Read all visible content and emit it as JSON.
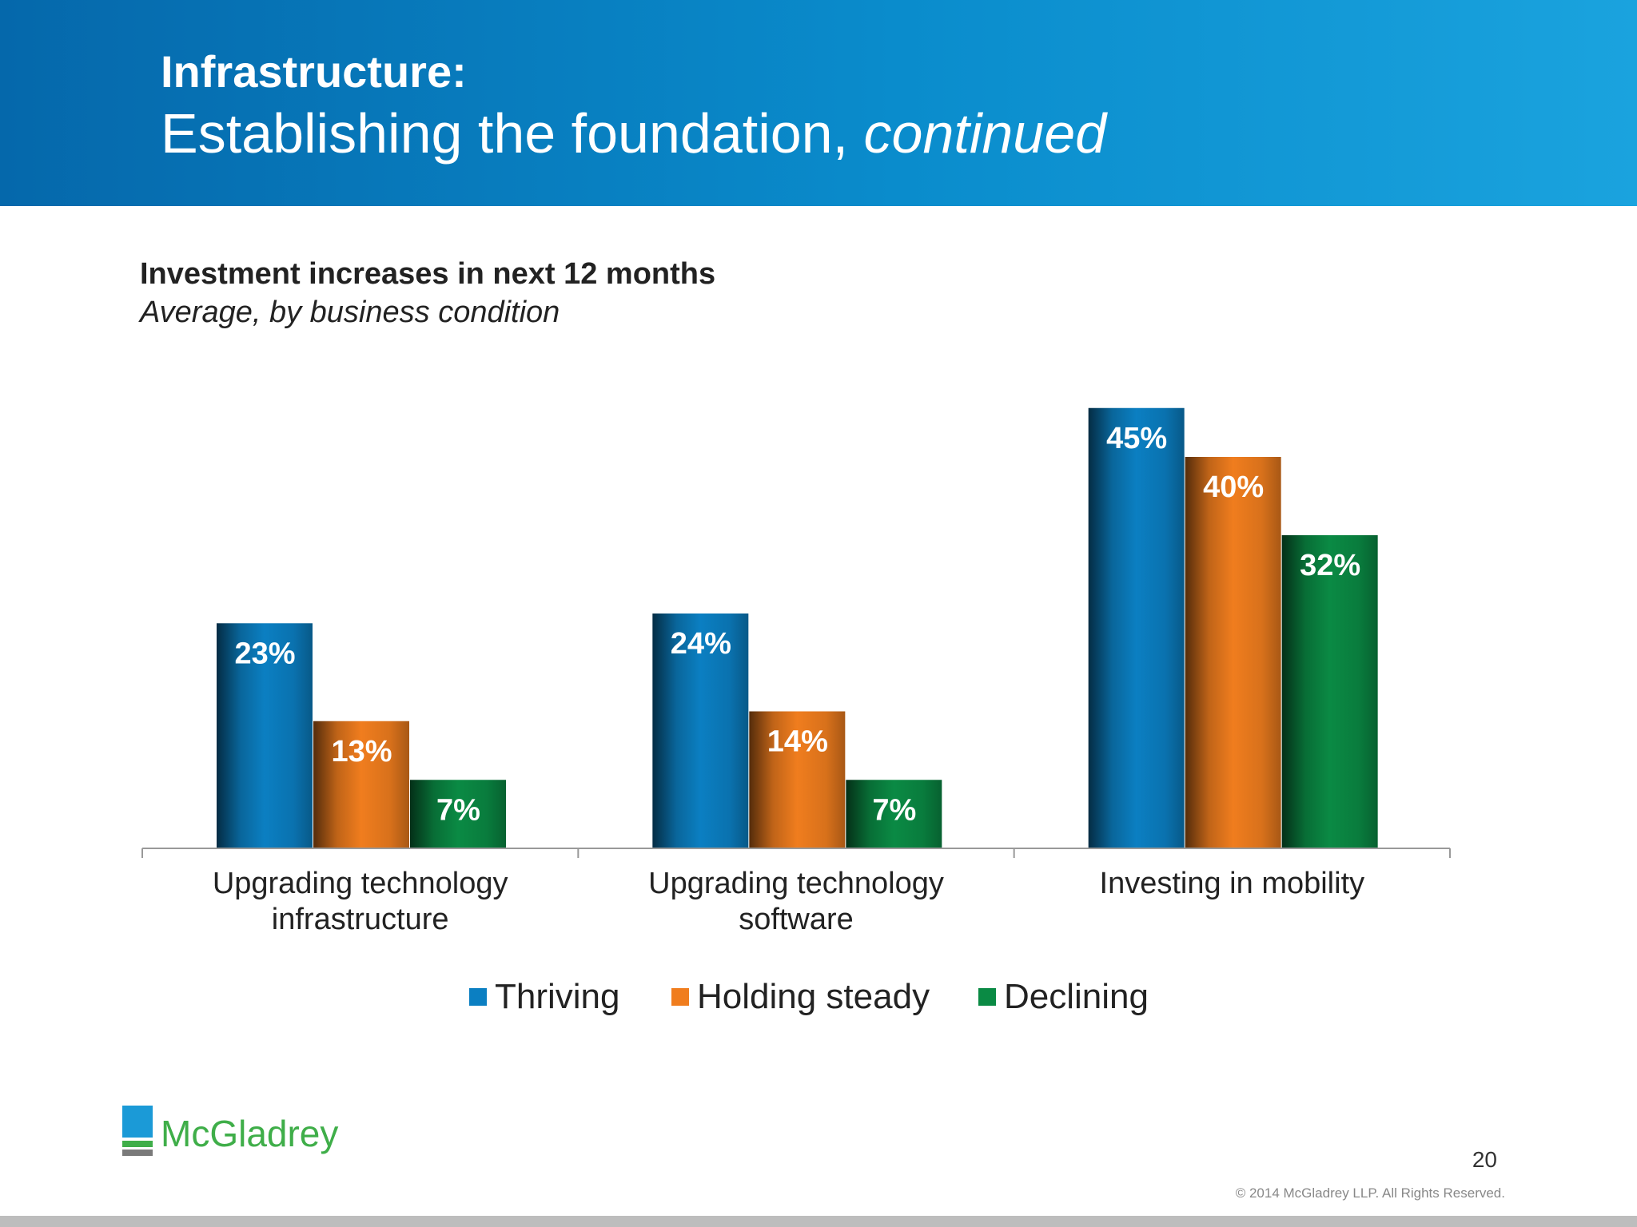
{
  "header": {
    "kicker": "Infrastructure:",
    "title_main": "Establishing the foundation, ",
    "title_em": "continued"
  },
  "chart_data": {
    "type": "bar",
    "title": "Investment increases in next 12 months",
    "subtitle": "Average, by business condition",
    "categories": [
      [
        "Upgrading technology",
        "infrastructure"
      ],
      [
        "Upgrading technology",
        "software"
      ],
      [
        "Investing in mobility"
      ]
    ],
    "series": [
      {
        "name": "Thriving",
        "values": [
          23,
          24,
          45
        ],
        "color": "#0b7fc2"
      },
      {
        "name": "Holding steady",
        "values": [
          13,
          14,
          40
        ],
        "color": "#f07d1e"
      },
      {
        "name": "Declining",
        "values": [
          7,
          7,
          32
        ],
        "color": "#0a8a44"
      }
    ],
    "value_suffix": "%",
    "ylim": [
      0,
      50
    ],
    "grid": false,
    "legend_position": "bottom"
  },
  "logo": {
    "text": "McGladrey"
  },
  "footer": {
    "page_number": "20",
    "copyright": "© 2014 McGladrey LLP. All Rights Reserved."
  }
}
